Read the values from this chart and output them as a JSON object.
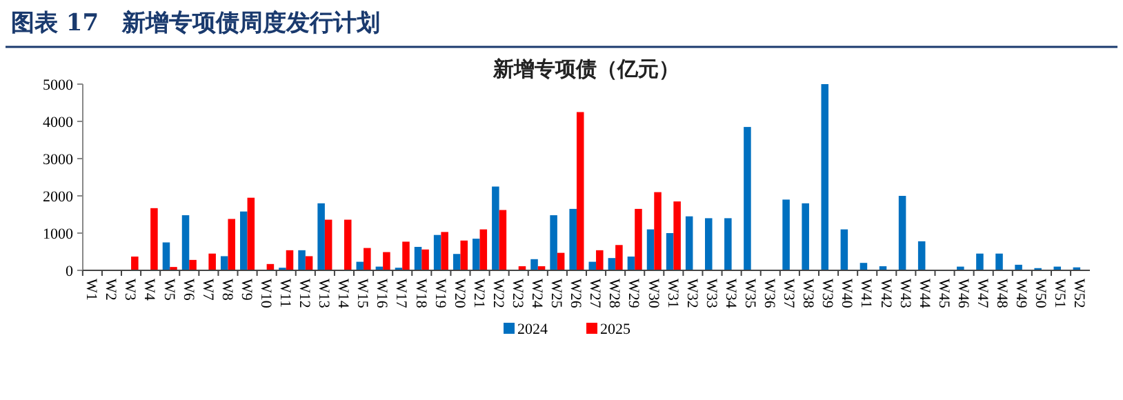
{
  "chart_data": {
    "type": "bar",
    "title": "图表 17　新增专项债周度发行计划",
    "subtitle": "新增专项债（亿元）",
    "categories": [
      "W1",
      "W2",
      "W3",
      "W4",
      "W5",
      "W6",
      "W7",
      "W8",
      "W9",
      "W10",
      "W11",
      "W12",
      "W13",
      "W14",
      "W15",
      "W16",
      "W17",
      "W18",
      "W19",
      "W20",
      "W21",
      "W22",
      "W23",
      "W24",
      "W25",
      "W26",
      "W27",
      "W28",
      "W29",
      "W30",
      "W31",
      "W32",
      "W33",
      "W34",
      "W35",
      "W36",
      "W37",
      "W38",
      "W39",
      "W40",
      "W41",
      "W42",
      "W43",
      "W44",
      "W45",
      "W46",
      "W47",
      "W48",
      "W49",
      "W50",
      "W51",
      "W52"
    ],
    "series": [
      {
        "name": "2024",
        "color": "#0070c0",
        "values": [
          0,
          0,
          0,
          0,
          750,
          1480,
          0,
          380,
          1580,
          0,
          70,
          540,
          1800,
          0,
          230,
          100,
          70,
          630,
          950,
          440,
          850,
          2250,
          0,
          300,
          1480,
          1650,
          230,
          330,
          370,
          1100,
          1000,
          1450,
          1400,
          1400,
          3850,
          0,
          1900,
          1800,
          5000,
          1100,
          200,
          110,
          2000,
          780,
          0,
          100,
          450,
          450,
          150,
          60,
          100,
          80
        ]
      },
      {
        "name": "2025",
        "color": "#ff0000",
        "values": [
          0,
          0,
          370,
          1670,
          90,
          280,
          450,
          1380,
          1950,
          170,
          540,
          380,
          1360,
          1360,
          600,
          490,
          770,
          560,
          1030,
          800,
          1100,
          1620,
          110,
          110,
          470,
          4250,
          540,
          680,
          1650,
          2100,
          1850,
          null,
          null,
          null,
          null,
          null,
          null,
          null,
          null,
          null,
          null,
          null,
          null,
          null,
          null,
          null,
          null,
          null,
          null,
          null,
          null,
          null
        ]
      }
    ],
    "ylim": [
      0,
      5000
    ],
    "yticks": [
      0,
      1000,
      2000,
      3000,
      4000,
      5000
    ],
    "grid": false,
    "legend": "bottom"
  }
}
